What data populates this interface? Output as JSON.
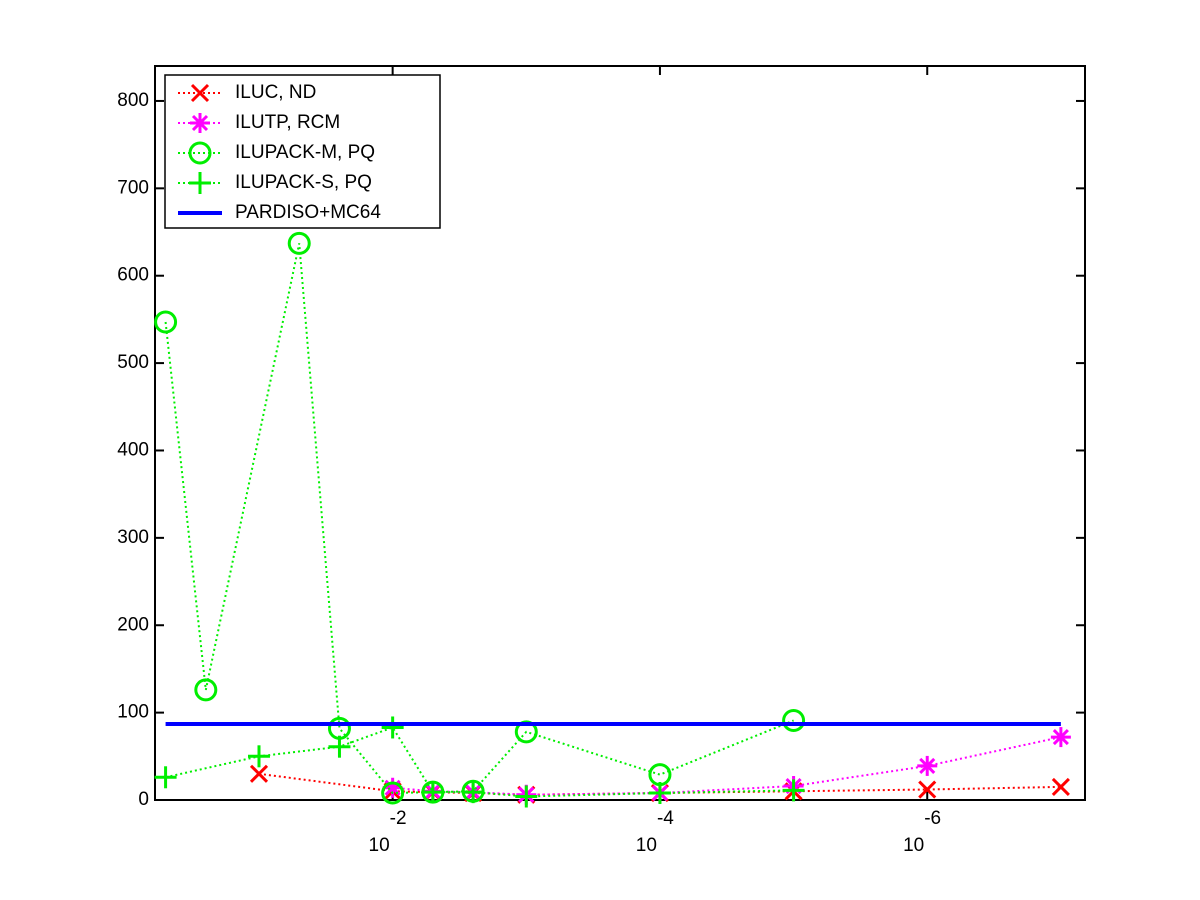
{
  "chart_data": {
    "type": "line",
    "xscale": "log",
    "x_reversed": true,
    "xlim": [
      0.6,
      6.6e-08
    ],
    "xticks": [
      {
        "value": 0.01,
        "label": "10",
        "exponent": "-2"
      },
      {
        "value": 0.0001,
        "label": "10",
        "exponent": "-4"
      },
      {
        "value": 1e-06,
        "label": "10",
        "exponent": "-6"
      }
    ],
    "ylim": [
      0,
      840
    ],
    "yticks": [
      0,
      100,
      200,
      300,
      400,
      500,
      600,
      700,
      800
    ],
    "legend": "upper-left",
    "series": [
      {
        "name": "ILUC,  ND",
        "color": "#ff0000",
        "marker": "x",
        "linestyle": "dotted",
        "x": [
          0.1,
          0.01,
          0.005,
          0.0025,
          0.001,
          0.0001,
          1e-05,
          1e-06,
          1e-07
        ],
        "values": [
          30,
          10,
          9,
          8,
          6,
          8,
          10,
          12,
          15
        ]
      },
      {
        "name": "ILUTP, RCM",
        "color": "#ff00ff",
        "marker": "asterisk",
        "linestyle": "dotted",
        "x": [
          0.01,
          0.005,
          0.0025,
          0.001,
          0.0001,
          1e-05,
          1e-06,
          1e-07
        ],
        "values": [
          14,
          10,
          9,
          6,
          8,
          16,
          39,
          72
        ]
      },
      {
        "name": "ILUPACK-M, PQ",
        "color": "#00ee00",
        "marker": "circle",
        "linestyle": "dotted",
        "x": [
          0.5,
          0.25,
          0.05,
          0.025,
          0.01,
          0.005,
          0.0025,
          0.001,
          0.0001,
          1e-05
        ],
        "values": [
          547,
          126,
          637,
          82,
          8,
          9,
          10,
          78,
          29,
          91
        ]
      },
      {
        "name": "ILUPACK-S, PQ",
        "color": "#00ee00",
        "marker": "plus",
        "linestyle": "dotted",
        "x": [
          0.5,
          0.1,
          0.025,
          0.01,
          0.005,
          0.0025,
          0.001,
          0.0001,
          1e-05
        ],
        "values": [
          26,
          50,
          61,
          83,
          9,
          9,
          4,
          8,
          11
        ]
      },
      {
        "name": "PARDISO+MC64",
        "color": "#0000ff",
        "marker": "none",
        "linestyle": "solid",
        "x": [
          0.5,
          1e-07
        ],
        "values": [
          87,
          87
        ]
      }
    ]
  }
}
